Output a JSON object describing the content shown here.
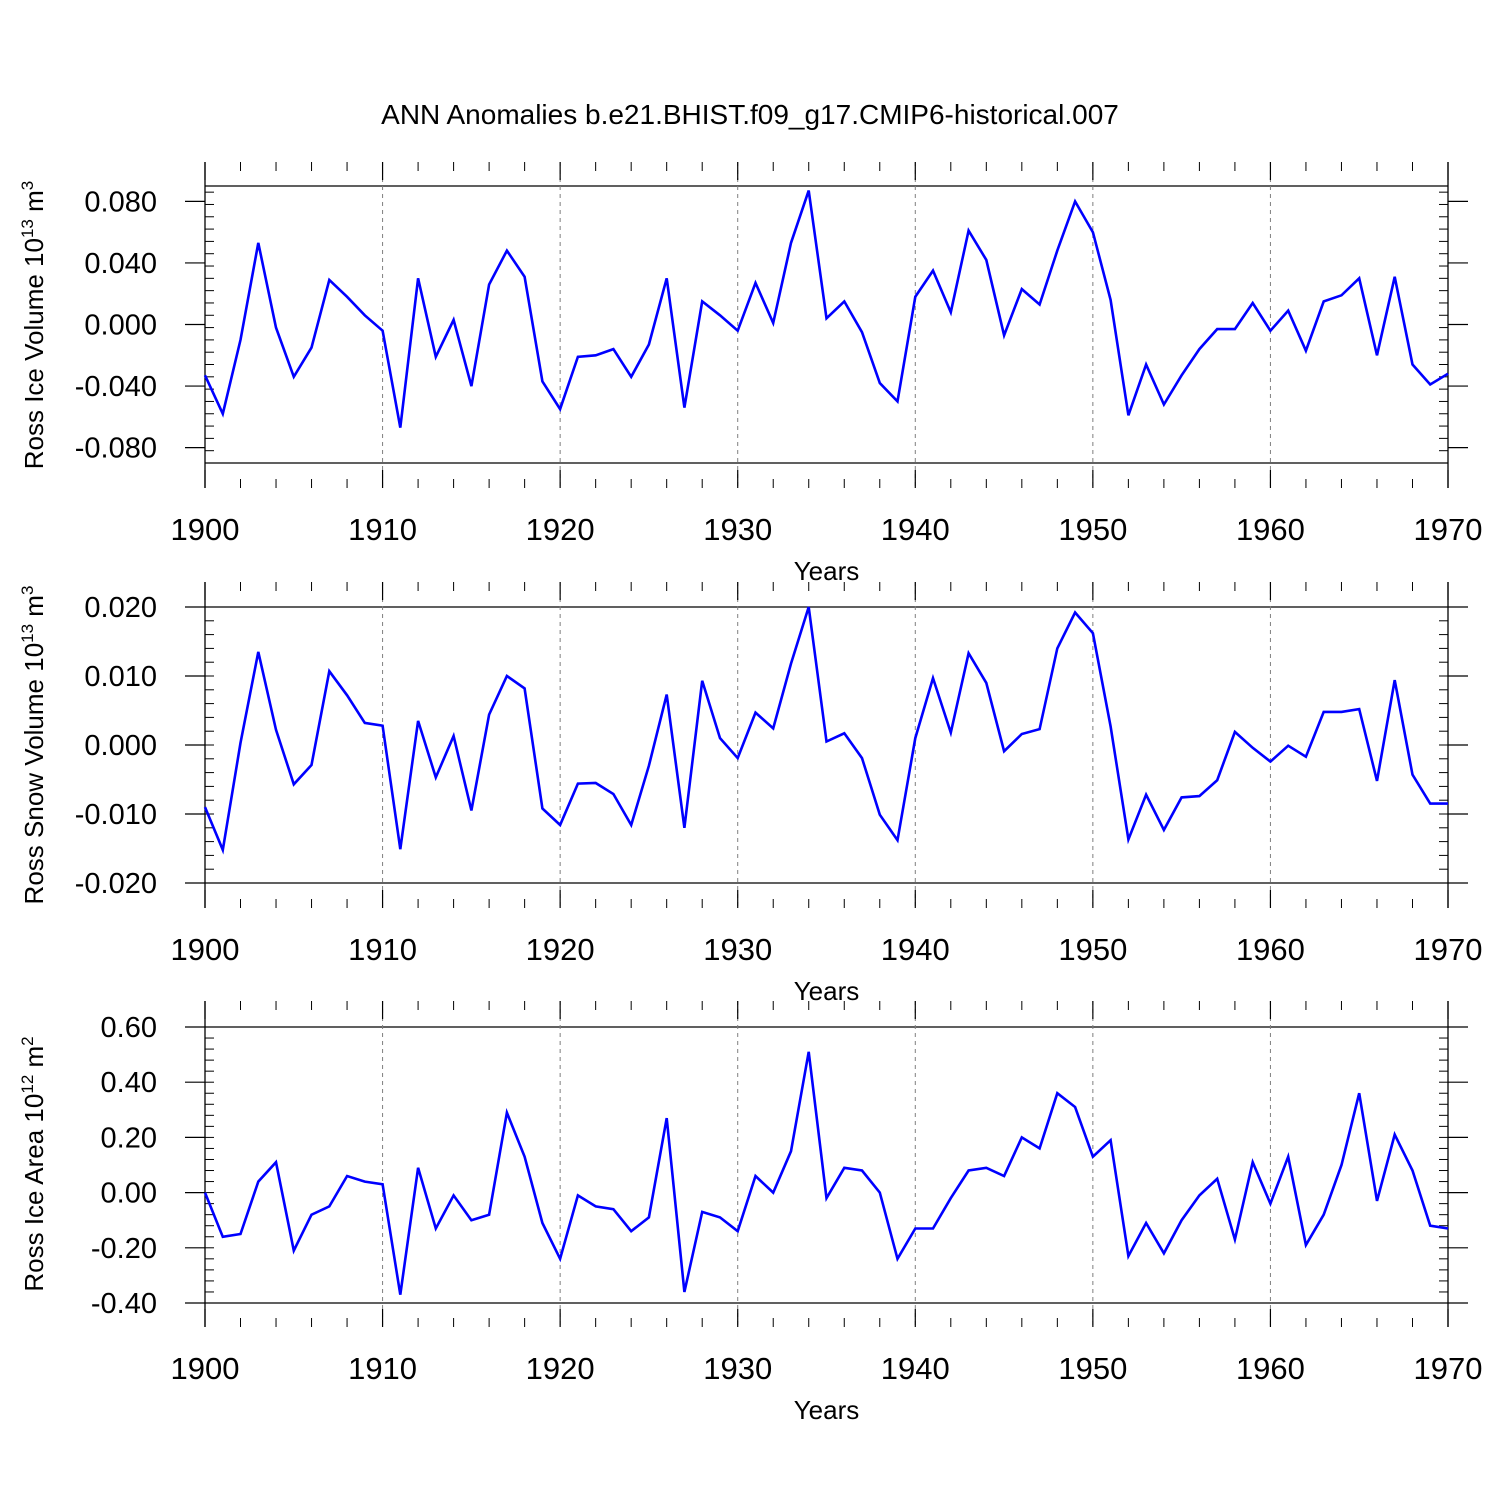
{
  "title": "ANN Anomalies b.e21.BHIST.f09_g17.CMIP6-historical.007",
  "colors": {
    "series": "#0000ff",
    "axis": "#000000",
    "grid": "#7f7f7f"
  },
  "chart_data": [
    {
      "type": "line",
      "ylabel_prefix": "Ross Ice Volume 10",
      "ylabel_exp": "13",
      "ylabel_unit": " m",
      "ylabel_unit_exp": "3",
      "xlabel": "Years",
      "xlim": [
        1900,
        1970
      ],
      "ylim": [
        -0.09,
        0.09
      ],
      "yticks": [
        -0.08,
        -0.04,
        0.0,
        0.04,
        0.08
      ],
      "ytick_labels": [
        "-0.080",
        "-0.040",
        "0.000",
        "0.040",
        "0.080"
      ],
      "xticks": [
        1900,
        1910,
        1920,
        1930,
        1940,
        1950,
        1960,
        1970
      ],
      "xtick_labels": [
        "1900",
        "1910",
        "1920",
        "1930",
        "1940",
        "1950",
        "1960",
        "1970"
      ],
      "series": [
        {
          "name": "Ross Ice Volume",
          "x_start": 1900,
          "values": [
            -0.033,
            -0.058,
            -0.01,
            0.053,
            -0.002,
            -0.034,
            -0.015,
            0.029,
            0.018,
            0.006,
            -0.004,
            -0.067,
            0.03,
            -0.021,
            0.003,
            -0.04,
            0.026,
            0.048,
            0.031,
            -0.037,
            -0.055,
            -0.021,
            -0.02,
            -0.016,
            -0.034,
            -0.013,
            0.03,
            -0.054,
            0.015,
            0.006,
            -0.004,
            0.027,
            0.001,
            0.053,
            0.087,
            0.004,
            0.015,
            -0.005,
            -0.038,
            -0.05,
            0.018,
            0.035,
            0.008,
            0.061,
            0.042,
            -0.007,
            0.023,
            0.013,
            0.048,
            0.08,
            0.06,
            0.016,
            -0.059,
            -0.026,
            -0.052,
            -0.033,
            -0.016,
            -0.003,
            -0.003,
            0.014,
            -0.004,
            0.009,
            -0.017,
            0.015,
            0.019,
            0.03,
            -0.02,
            0.031,
            -0.026,
            -0.039,
            -0.032
          ]
        }
      ]
    },
    {
      "type": "line",
      "ylabel_prefix": "Ross Snow Volume 10",
      "ylabel_exp": "13",
      "ylabel_unit": " m",
      "ylabel_unit_exp": "3",
      "xlabel": "Years",
      "xlim": [
        1900,
        1970
      ],
      "ylim": [
        -0.02,
        0.02
      ],
      "yticks": [
        -0.02,
        -0.01,
        0.0,
        0.01,
        0.02
      ],
      "ytick_labels": [
        "-0.020",
        "-0.010",
        "0.000",
        "0.010",
        "0.020"
      ],
      "xticks": [
        1900,
        1910,
        1920,
        1930,
        1940,
        1950,
        1960,
        1970
      ],
      "xtick_labels": [
        "1900",
        "1910",
        "1920",
        "1930",
        "1940",
        "1950",
        "1960",
        "1970"
      ],
      "series": [
        {
          "name": "Ross Snow Volume",
          "x_start": 1900,
          "values": [
            -0.009,
            -0.0152,
            0.0003,
            0.0135,
            0.0022,
            -0.0057,
            -0.0029,
            0.0107,
            0.0072,
            0.0032,
            0.0028,
            -0.0151,
            0.0035,
            -0.0047,
            0.0013,
            -0.0095,
            0.0044,
            0.01,
            0.0082,
            -0.0092,
            -0.0116,
            -0.0056,
            -0.0055,
            -0.0071,
            -0.0116,
            -0.003,
            0.0073,
            -0.012,
            0.0093,
            0.001,
            -0.0019,
            0.0047,
            0.0024,
            0.0118,
            0.02,
            0.0005,
            0.0017,
            -0.0019,
            -0.0101,
            -0.0138,
            0.001,
            0.0097,
            0.0018,
            0.0133,
            0.009,
            -0.0009,
            0.0016,
            0.0023,
            0.014,
            0.0192,
            0.0162,
            0.0027,
            -0.0137,
            -0.0072,
            -0.0123,
            -0.0076,
            -0.0074,
            -0.0051,
            0.0019,
            -0.0004,
            -0.0024,
            -0.0001,
            -0.0017,
            0.0048,
            0.0048,
            0.0052,
            -0.0052,
            0.0094,
            -0.0043,
            -0.0085,
            -0.0085
          ]
        }
      ]
    },
    {
      "type": "line",
      "ylabel_prefix": "Ross Ice Area 10",
      "ylabel_exp": "12",
      "ylabel_unit": " m",
      "ylabel_unit_exp": "2",
      "xlabel": "Years",
      "xlim": [
        1900,
        1970
      ],
      "ylim": [
        -0.4,
        0.6
      ],
      "yticks": [
        -0.4,
        -0.2,
        0.0,
        0.2,
        0.4,
        0.6
      ],
      "ytick_labels": [
        "-0.40",
        "-0.20",
        "0.00",
        "0.20",
        "0.40",
        "0.60"
      ],
      "xticks": [
        1900,
        1910,
        1920,
        1930,
        1940,
        1950,
        1960,
        1970
      ],
      "xtick_labels": [
        "1900",
        "1910",
        "1920",
        "1930",
        "1940",
        "1950",
        "1960",
        "1970"
      ],
      "series": [
        {
          "name": "Ross Ice Area",
          "x_start": 1900,
          "values": [
            0.0,
            -0.16,
            -0.15,
            0.04,
            0.11,
            -0.21,
            -0.08,
            -0.05,
            0.06,
            0.04,
            0.03,
            -0.37,
            0.09,
            -0.13,
            -0.01,
            -0.1,
            -0.08,
            0.29,
            0.13,
            -0.11,
            -0.24,
            -0.01,
            -0.05,
            -0.06,
            -0.14,
            -0.09,
            0.27,
            -0.36,
            -0.07,
            -0.09,
            -0.14,
            0.06,
            0.0,
            0.15,
            0.51,
            -0.02,
            0.09,
            0.08,
            0.0,
            -0.24,
            -0.13,
            -0.13,
            -0.02,
            0.08,
            0.09,
            0.06,
            0.2,
            0.16,
            0.36,
            0.31,
            0.13,
            0.19,
            -0.23,
            -0.11,
            -0.22,
            -0.1,
            -0.01,
            0.05,
            -0.17,
            0.11,
            -0.04,
            0.13,
            -0.19,
            -0.08,
            0.1,
            0.36,
            -0.03,
            0.21,
            0.08,
            -0.12,
            -0.13
          ]
        }
      ]
    }
  ]
}
